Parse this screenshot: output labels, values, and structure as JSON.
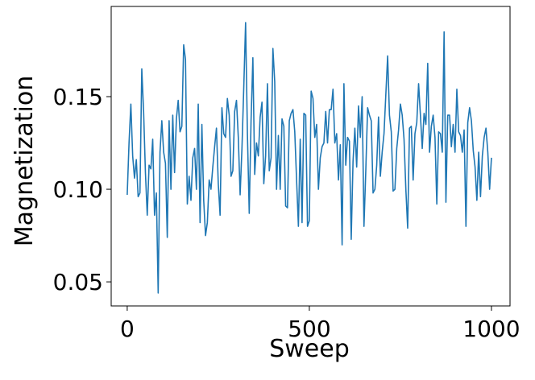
{
  "chart_data": {
    "type": "line",
    "x_label": "Sweep",
    "y_label": "Magnetization",
    "x": [
      0,
      5,
      10,
      15,
      20,
      25,
      30,
      35,
      40,
      45,
      50,
      55,
      60,
      65,
      70,
      75,
      80,
      85,
      90,
      95,
      100,
      105,
      110,
      115,
      120,
      125,
      130,
      135,
      140,
      145,
      150,
      155,
      160,
      165,
      170,
      175,
      180,
      185,
      190,
      195,
      200,
      205,
      210,
      215,
      220,
      225,
      230,
      235,
      240,
      245,
      250,
      255,
      260,
      265,
      270,
      275,
      280,
      285,
      290,
      295,
      300,
      305,
      310,
      315,
      320,
      325,
      330,
      335,
      340,
      345,
      350,
      355,
      360,
      365,
      370,
      375,
      380,
      385,
      390,
      395,
      400,
      405,
      410,
      415,
      420,
      425,
      430,
      435,
      440,
      445,
      450,
      455,
      460,
      465,
      470,
      475,
      480,
      485,
      490,
      495,
      500,
      505,
      510,
      515,
      520,
      525,
      530,
      535,
      540,
      545,
      550,
      555,
      560,
      565,
      570,
      575,
      580,
      585,
      590,
      595,
      600,
      605,
      610,
      615,
      620,
      625,
      630,
      635,
      640,
      645,
      650,
      655,
      660,
      665,
      670,
      675,
      680,
      685,
      690,
      695,
      700,
      705,
      710,
      715,
      720,
      725,
      730,
      735,
      740,
      745,
      750,
      755,
      760,
      765,
      770,
      775,
      780,
      785,
      790,
      795,
      800,
      805,
      810,
      815,
      820,
      825,
      830,
      835,
      840,
      845,
      850,
      855,
      860,
      865,
      870,
      875,
      880,
      885,
      890,
      895,
      900,
      905,
      910,
      915,
      920,
      925,
      930,
      935,
      940,
      945,
      950,
      955,
      960,
      965,
      970,
      975,
      980,
      985,
      990,
      995,
      1000
    ],
    "series": [
      {
        "name": "Magnetization",
        "color": "#1f77b4",
        "values": [
          0.097,
          0.125,
          0.146,
          0.118,
          0.106,
          0.116,
          0.096,
          0.098,
          0.165,
          0.142,
          0.109,
          0.086,
          0.113,
          0.111,
          0.127,
          0.086,
          0.098,
          0.044,
          0.12,
          0.137,
          0.12,
          0.114,
          0.074,
          0.137,
          0.1,
          0.14,
          0.109,
          0.138,
          0.148,
          0.131,
          0.134,
          0.178,
          0.17,
          0.092,
          0.107,
          0.094,
          0.117,
          0.122,
          0.1,
          0.146,
          0.082,
          0.135,
          0.094,
          0.075,
          0.082,
          0.105,
          0.1,
          0.112,
          0.123,
          0.133,
          0.103,
          0.086,
          0.144,
          0.13,
          0.128,
          0.149,
          0.14,
          0.107,
          0.11,
          0.142,
          0.148,
          0.128,
          0.097,
          0.122,
          0.155,
          0.19,
          0.13,
          0.087,
          0.137,
          0.171,
          0.108,
          0.125,
          0.118,
          0.139,
          0.147,
          0.103,
          0.118,
          0.157,
          0.11,
          0.117,
          0.176,
          0.158,
          0.1,
          0.129,
          0.1,
          0.138,
          0.134,
          0.091,
          0.09,
          0.137,
          0.141,
          0.143,
          0.131,
          0.105,
          0.08,
          0.127,
          0.082,
          0.141,
          0.14,
          0.08,
          0.083,
          0.153,
          0.149,
          0.128,
          0.135,
          0.1,
          0.117,
          0.123,
          0.125,
          0.142,
          0.125,
          0.143,
          0.143,
          0.154,
          0.125,
          0.13,
          0.105,
          0.124,
          0.07,
          0.157,
          0.113,
          0.128,
          0.126,
          0.073,
          0.115,
          0.133,
          0.112,
          0.145,
          0.128,
          0.15,
          0.08,
          0.11,
          0.144,
          0.14,
          0.137,
          0.098,
          0.1,
          0.113,
          0.139,
          0.107,
          0.12,
          0.13,
          0.151,
          0.172,
          0.14,
          0.131,
          0.099,
          0.1,
          0.122,
          0.132,
          0.146,
          0.14,
          0.127,
          0.1,
          0.079,
          0.133,
          0.134,
          0.105,
          0.13,
          0.136,
          0.157,
          0.14,
          0.122,
          0.141,
          0.135,
          0.168,
          0.12,
          0.134,
          0.14,
          0.128,
          0.092,
          0.131,
          0.13,
          0.12,
          0.185,
          0.093,
          0.14,
          0.14,
          0.123,
          0.135,
          0.12,
          0.154,
          0.131,
          0.129,
          0.12,
          0.132,
          0.08,
          0.136,
          0.144,
          0.137,
          0.121,
          0.112,
          0.094,
          0.12,
          0.096,
          0.118,
          0.128,
          0.133,
          0.12,
          0.1,
          0.117
        ]
      }
    ],
    "xlim": [
      -44,
      1051
    ],
    "ylim": [
      0.037,
      0.1987
    ],
    "xticks": [
      0,
      500,
      1000
    ],
    "yticks": [
      0.05,
      {
        "value": 0.1,
        "label": "0.10"
      },
      0.15
    ]
  }
}
